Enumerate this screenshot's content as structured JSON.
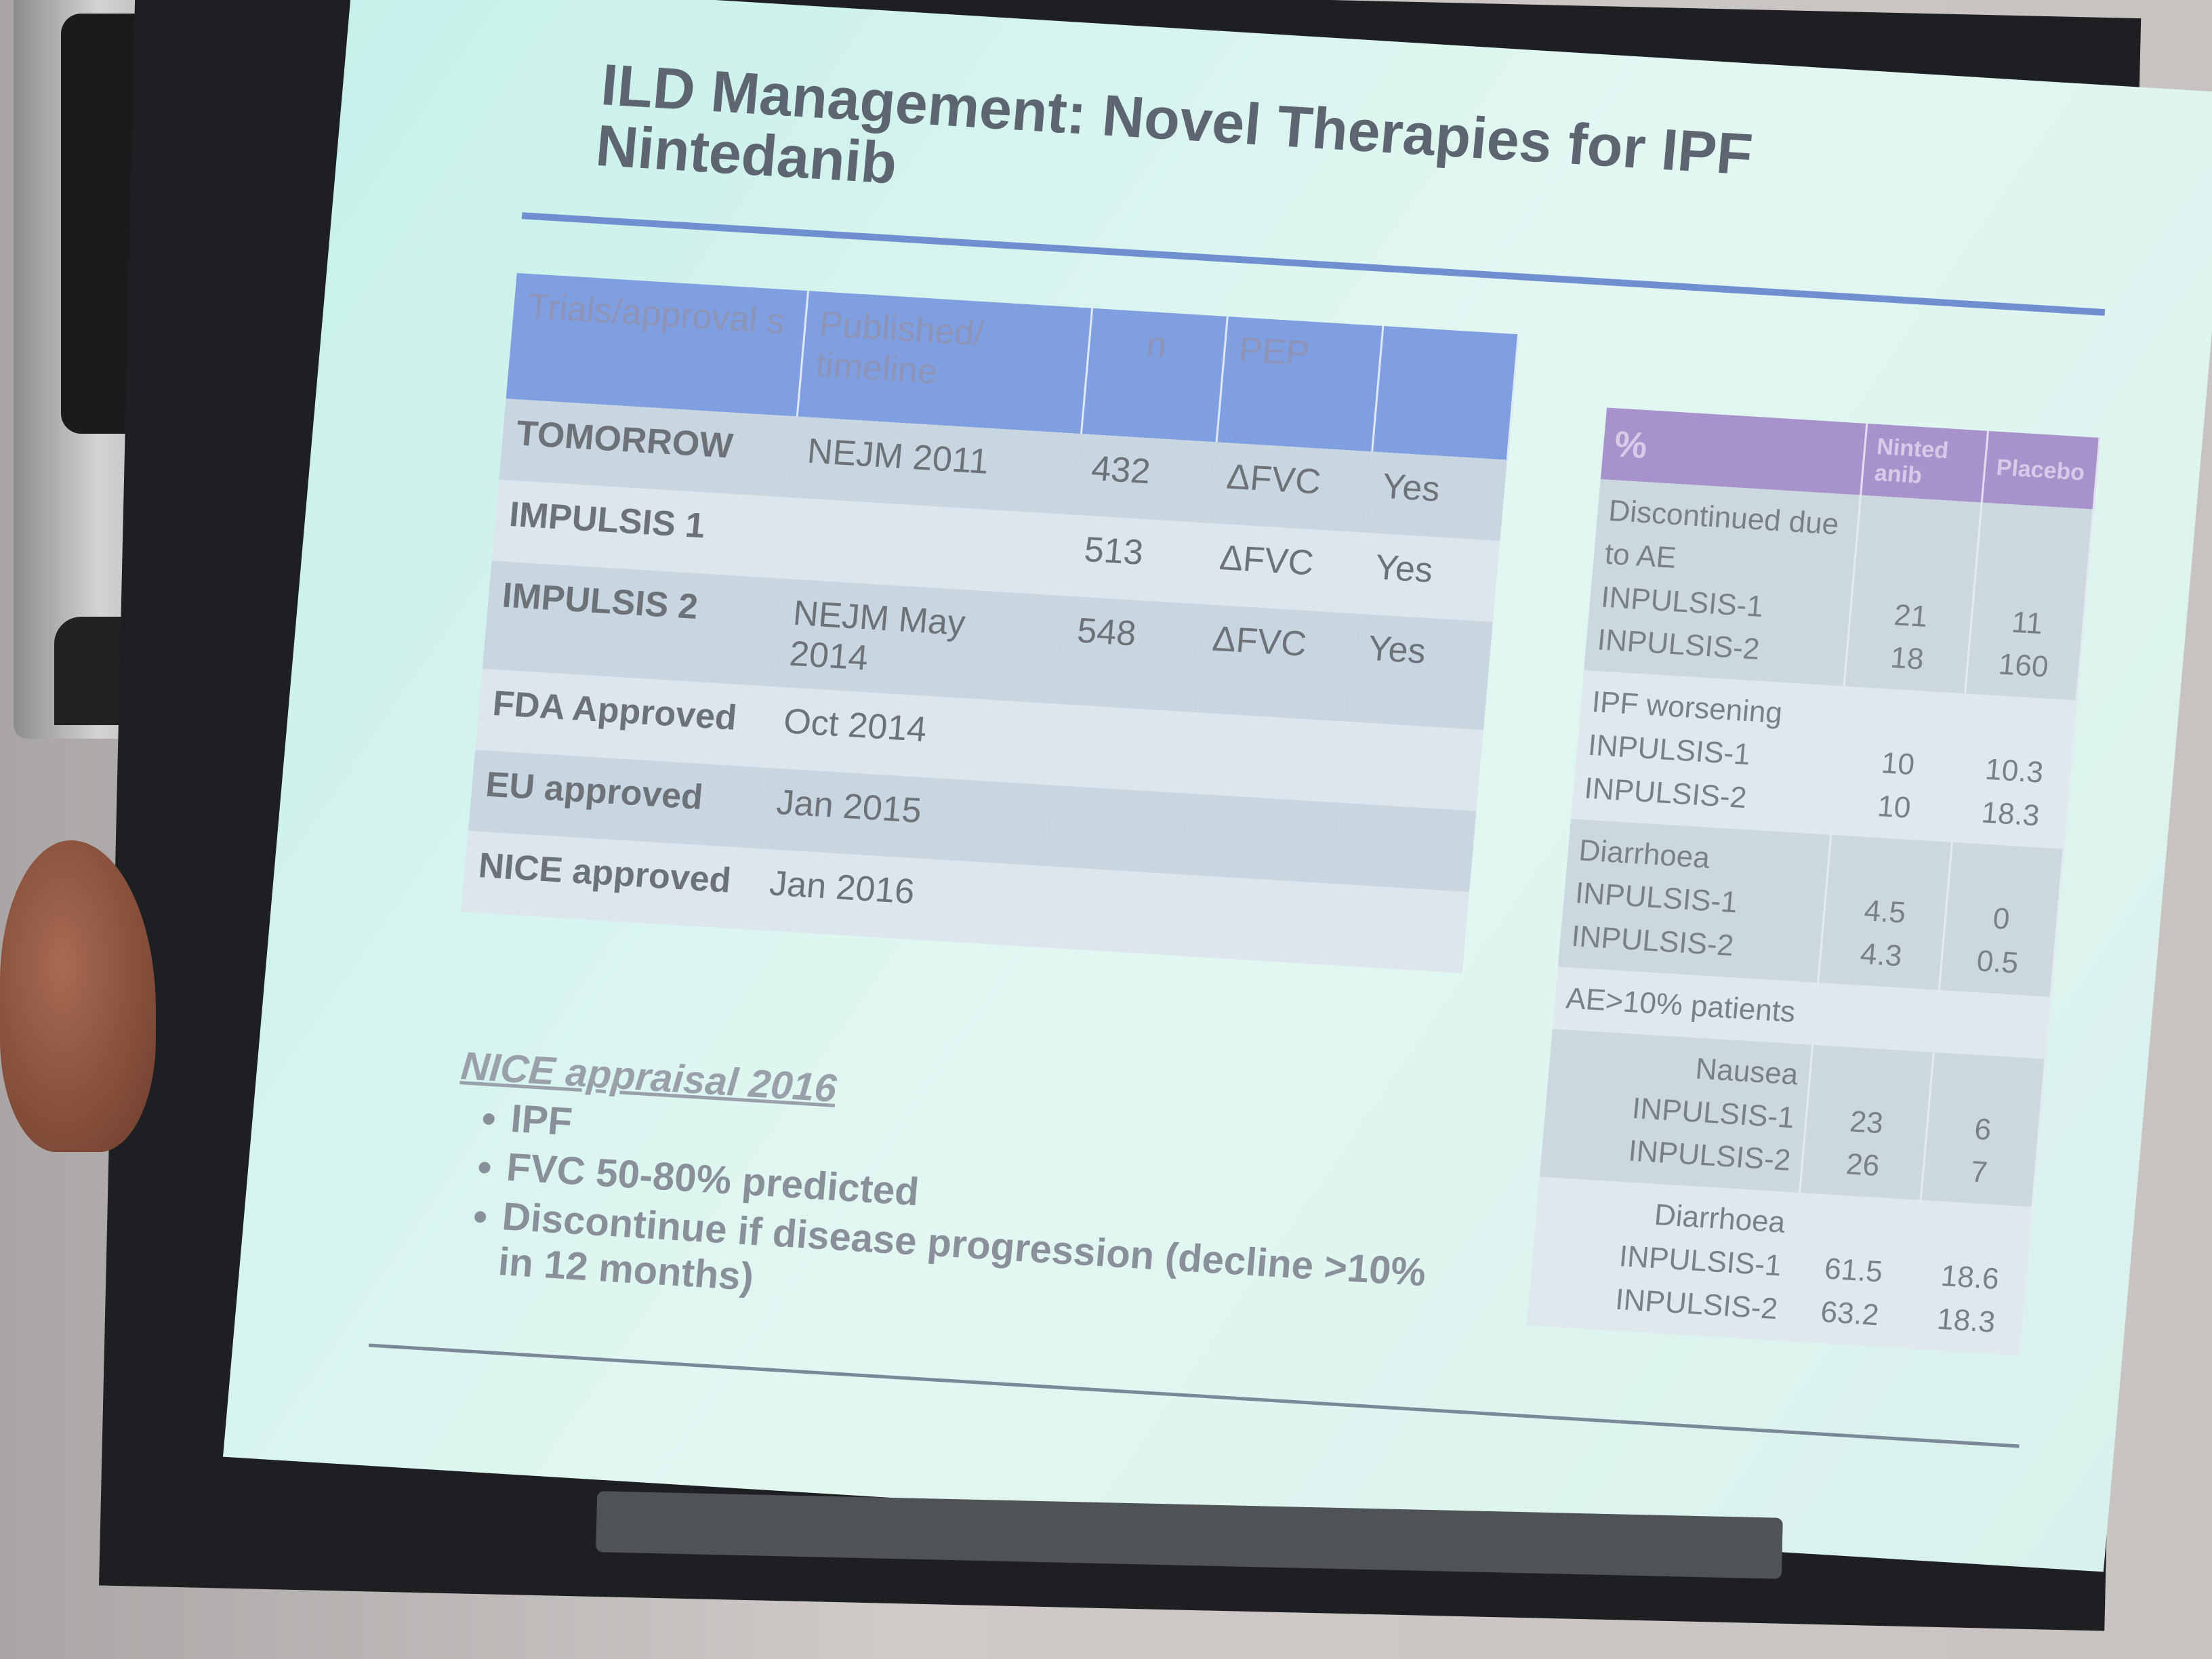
{
  "slide": {
    "title_line1": "ILD Management: Novel Therapies for IPF",
    "title_line2": "Nintedanib"
  },
  "left_table": {
    "headers": [
      "Trials/approval s",
      "Published/ timeline",
      "n",
      "PEP",
      ""
    ],
    "rows": [
      [
        "TOMORROW",
        "NEJM 2011",
        "432",
        "ΔFVC",
        "Yes"
      ],
      [
        "IMPULSIS 1",
        "",
        "513",
        "ΔFVC",
        "Yes"
      ],
      [
        "IMPULSIS 2",
        "NEJM May 2014",
        "548",
        "ΔFVC",
        "Yes"
      ],
      [
        "FDA  Approved",
        "Oct 2014",
        "",
        "",
        ""
      ],
      [
        "EU approved",
        "Jan 2015",
        "",
        "",
        ""
      ],
      [
        "NICE approved",
        "Jan 2016",
        "",
        "",
        ""
      ]
    ]
  },
  "right_table": {
    "headers": [
      "%",
      "Ninted anib",
      "Placebo"
    ],
    "rows": [
      {
        "label": "Discontinued due to AE",
        "sub": "INPULSIS-1\nINPULSIS-2",
        "nint": "21\n18",
        "plac": "11\n160"
      },
      {
        "label": "IPF worsening",
        "sub": "INPULSIS-1\nINPULSIS-2",
        "nint": "10\n10",
        "plac": "10.3\n18.3"
      },
      {
        "label": "Diarrhoea",
        "sub": "INPULSIS-1\nINPULSIS-2",
        "nint": "4.5\n4.3",
        "plac": "0\n0.5"
      },
      {
        "label": "AE>10% patients",
        "sub": "",
        "nint": "",
        "plac": ""
      },
      {
        "label": "Nausea INPULSIS-1",
        "sub": "INPULSIS-2",
        "nint": "23\n26",
        "plac": "6\n7"
      },
      {
        "label": "Diarrhoea",
        "sub": "INPULSIS-1\nINPULSIS-2",
        "nint": "61.5\n63.2",
        "plac": "18.6\n18.3"
      }
    ]
  },
  "notes": {
    "heading": "NICE appraisal 2016",
    "bullets": [
      "IPF",
      "FVC 50-80% predicted",
      "Discontinue if disease progression (decline >10% in 12 months)"
    ]
  },
  "colors": {
    "left_header": "#7f9fe0",
    "right_header": "#a892cc",
    "slide_bg": "#d2f2ec"
  }
}
